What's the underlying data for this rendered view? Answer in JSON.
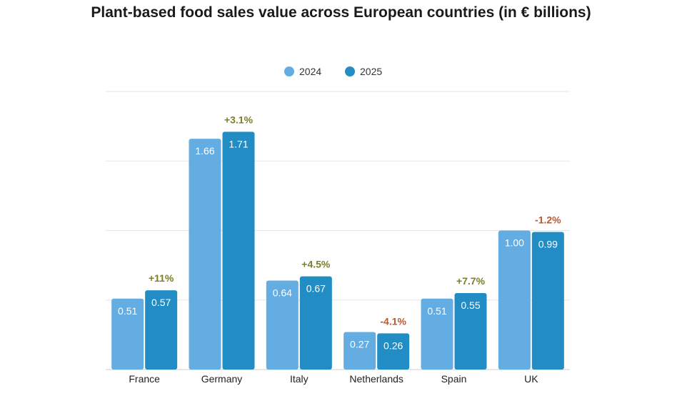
{
  "title": "Plant-based food sales value across European countries (in € billions)",
  "chart_data": {
    "type": "bar",
    "title": "Plant-based food sales value across European countries (in € billions)",
    "categories": [
      "France",
      "Germany",
      "Italy",
      "Netherlands",
      "Spain",
      "UK"
    ],
    "series": [
      {
        "name": "2024",
        "values": [
          0.51,
          1.66,
          0.64,
          0.27,
          0.51,
          1.0
        ],
        "labels": [
          "0.51",
          "1.66",
          "0.64",
          "0.27",
          "0.51",
          "1.00"
        ],
        "color": "#64ade3"
      },
      {
        "name": "2025",
        "values": [
          0.57,
          1.71,
          0.67,
          0.26,
          0.55,
          0.99
        ],
        "labels": [
          "0.57",
          "1.71",
          "0.67",
          "0.26",
          "0.55",
          "0.99"
        ],
        "color": "#228cc4"
      }
    ],
    "changes": [
      "+11%",
      "+3.1%",
      "+4.5%",
      "-4.1%",
      "+7.7%",
      "-1.2%"
    ],
    "change_colors": {
      "positive": "#7a7f22",
      "negative": "#c0582e"
    },
    "ylim": [
      0,
      2.0
    ],
    "grid": true,
    "legend": "top-center",
    "xlabel": "",
    "ylabel": ""
  }
}
